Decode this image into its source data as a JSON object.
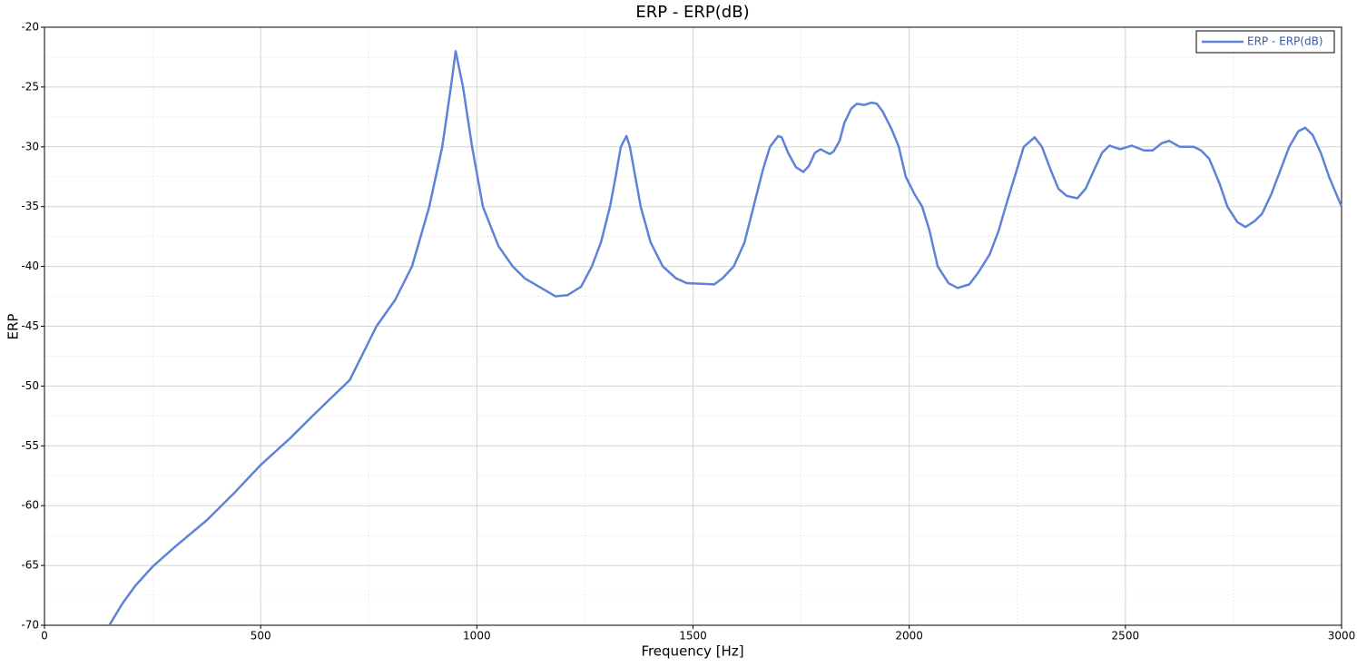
{
  "chart_data": {
    "type": "line",
    "title": "ERP - ERP(dB)",
    "x_label": "Frequency [Hz]",
    "y_label": "ERP",
    "x": [
      150,
      180,
      210,
      250,
      300,
      376,
      440,
      500,
      570,
      620,
      660,
      706,
      768,
      811,
      850,
      890,
      920,
      940,
      951,
      968,
      989,
      1014,
      1050,
      1083,
      1111,
      1182,
      1210,
      1241,
      1266,
      1287,
      1308,
      1321,
      1333,
      1346,
      1354,
      1379,
      1402,
      1430,
      1461,
      1486,
      1549,
      1568,
      1594,
      1619,
      1640,
      1661,
      1678,
      1697,
      1705,
      1720,
      1738,
      1755,
      1768,
      1782,
      1795,
      1816,
      1825,
      1839,
      1850,
      1866,
      1879,
      1896,
      1913,
      1925,
      1938,
      1959,
      1976,
      1992,
      2013,
      2030,
      2047,
      2066,
      2091,
      2112,
      2139,
      2160,
      2186,
      2207,
      2223,
      2244,
      2265,
      2290,
      2307,
      2328,
      2345,
      2364,
      2389,
      2408,
      2427,
      2446,
      2463,
      2488,
      2515,
      2543,
      2563,
      2584,
      2601,
      2626,
      2658,
      2675,
      2694,
      2717,
      2736,
      2759,
      2778,
      2799,
      2816,
      2837,
      2858,
      2879,
      2900,
      2916,
      2933,
      2952,
      2971,
      3000
    ],
    "series": [
      {
        "name": "ERP - ERP(dB)",
        "color": "#5f82d8",
        "values": [
          -70,
          -68.2,
          -66.7,
          -65.1,
          -63.5,
          -61.2,
          -58.9,
          -56.6,
          -54.3,
          -52.5,
          -51.1,
          -49.5,
          -45,
          -42.8,
          -40,
          -35,
          -30,
          -25,
          -22,
          -25,
          -30,
          -35,
          -38.3,
          -40,
          -41,
          -42.5,
          -42.4,
          -41.7,
          -40,
          -38,
          -35,
          -32.5,
          -30,
          -29.1,
          -30,
          -35,
          -38,
          -40,
          -41,
          -41.4,
          -41.5,
          -41,
          -40,
          -38,
          -35,
          -32,
          -30,
          -29.1,
          -29.2,
          -30.5,
          -31.7,
          -32.1,
          -31.6,
          -30.5,
          -30.2,
          -30.6,
          -30.4,
          -29.5,
          -28,
          -26.8,
          -26.4,
          -26.5,
          -26.3,
          -26.4,
          -27,
          -28.5,
          -30,
          -32.5,
          -34,
          -35,
          -37,
          -40,
          -41.4,
          -41.8,
          -41.5,
          -40.5,
          -39,
          -37,
          -35,
          -32.5,
          -30,
          -29.2,
          -30,
          -32,
          -33.5,
          -34.1,
          -34.3,
          -33.5,
          -32,
          -30.5,
          -29.9,
          -30.2,
          -29.9,
          -30.3,
          -30.3,
          -29.7,
          -29.5,
          -30,
          -30,
          -30.3,
          -31,
          -33,
          -35,
          -36.3,
          -36.7,
          -36.2,
          -35.6,
          -34,
          -32,
          -30,
          -28.7,
          -28.4,
          -29,
          -30.5,
          -32.5,
          -35
        ]
      }
    ],
    "xlim": [
      0,
      3000
    ],
    "xticks": [
      0,
      500,
      1000,
      1500,
      2000,
      2500,
      3000
    ],
    "ylim": [
      -70,
      -20
    ],
    "yticks": [
      -70,
      -65,
      -60,
      -55,
      -50,
      -45,
      -40,
      -35,
      -30,
      -25,
      -20
    ],
    "grid": true,
    "legend": "upper-right"
  }
}
